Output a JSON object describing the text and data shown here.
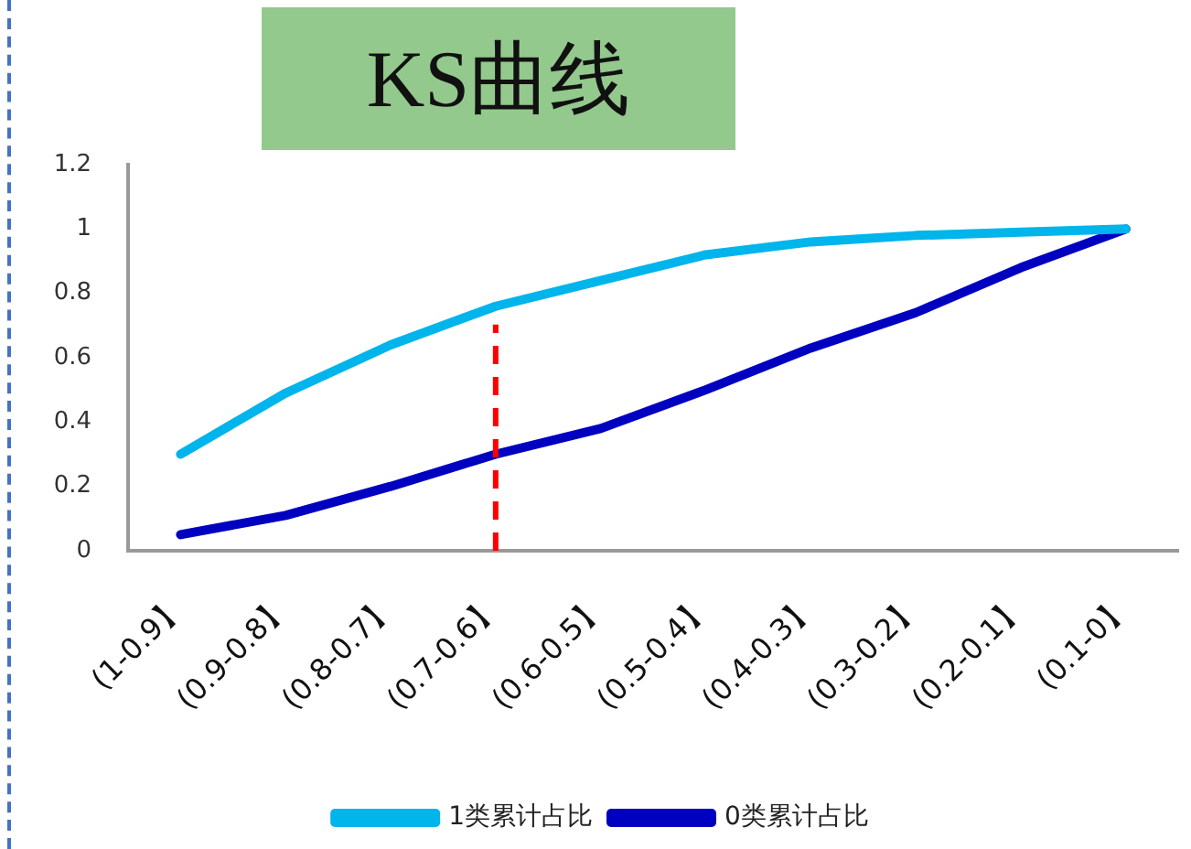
{
  "chart_data": {
    "type": "line",
    "title": "KS曲线",
    "categories": [
      "(1-0.9】",
      "(0.9-0.8】",
      "(0.8-0.7】",
      "(0.7-0.6】",
      "(0.6-0.5】",
      "(0.5-0.4】",
      "(0.4-0.3】",
      "(0.3-0.2】",
      "(0.2-0.1】",
      "(0.1-0】"
    ],
    "series": [
      {
        "name": "1类累计占比",
        "color": "#00b4ec",
        "values": [
          0.3,
          0.49,
          0.64,
          0.76,
          0.84,
          0.92,
          0.96,
          0.98,
          0.99,
          1
        ]
      },
      {
        "name": "0类累计占比",
        "color": "#0000c0",
        "values": [
          0.05,
          0.11,
          0.2,
          0.3,
          0.38,
          0.5,
          0.63,
          0.74,
          0.88,
          1
        ]
      }
    ],
    "ylim": [
      0,
      1.2
    ],
    "yticks": [
      0,
      0.2,
      0.4,
      0.6,
      0.8,
      1,
      1.2
    ],
    "ref_lines": [
      {
        "axis": "x",
        "value": "(0.7-0.6】",
        "color": "#ff0000",
        "line_style": "dashed"
      }
    ],
    "legend": "bottom",
    "marker": "none",
    "line_style": "solid"
  }
}
